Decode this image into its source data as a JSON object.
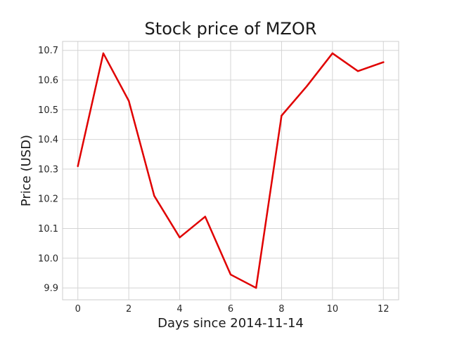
{
  "chart_data": {
    "type": "line",
    "title": "Stock price of MZOR",
    "xlabel": "Days since 2014-11-14",
    "ylabel": "Price (USD)",
    "x": [
      0,
      1,
      2,
      3,
      4,
      5,
      6,
      7,
      8,
      9,
      10,
      11,
      12
    ],
    "series": [
      {
        "values": [
          10.31,
          10.69,
          10.53,
          10.21,
          10.07,
          10.14,
          9.945,
          9.9,
          10.48,
          10.58,
          10.69,
          10.63,
          10.66
        ],
        "color": "#e00000"
      }
    ],
    "xlim": [
      -0.6,
      12.6
    ],
    "ylim": [
      9.86,
      10.73
    ],
    "xticks": [
      0,
      2,
      4,
      6,
      8,
      10,
      12
    ],
    "yticks": [
      9.9,
      10.0,
      10.1,
      10.2,
      10.3,
      10.4,
      10.5,
      10.6,
      10.7
    ],
    "xtick_labels": [
      "0",
      "2",
      "4",
      "6",
      "8",
      "10",
      "12"
    ],
    "ytick_labels": [
      "9.9",
      "10.0",
      "10.1",
      "10.2",
      "10.3",
      "10.4",
      "10.5",
      "10.6",
      "10.7"
    ],
    "grid": true
  }
}
